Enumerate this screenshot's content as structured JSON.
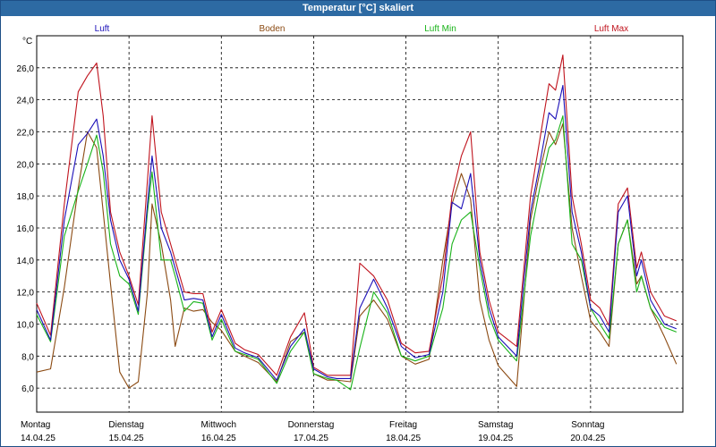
{
  "window": {
    "title": "Temperatur [°C] skaliert"
  },
  "colors": {
    "luft": "#1a0fb8",
    "boden": "#8b4a12",
    "luft_min": "#19b319",
    "luft_max": "#c0141e",
    "titlebar": "#2d6aa3"
  },
  "chart_data": {
    "type": "line",
    "title": "Temperatur [°C] skaliert",
    "ylabel": "°C",
    "ylim": [
      4.5,
      28
    ],
    "grid": true,
    "legend_position": "top",
    "xlim": [
      0,
      7
    ],
    "y_ticks": [
      "6,0",
      "8,0",
      "10,0",
      "12,0",
      "14,0",
      "16,0",
      "18,0",
      "20,0",
      "22,0",
      "24,0",
      "26,0"
    ],
    "y_tick_values": [
      6,
      8,
      10,
      12,
      14,
      16,
      18,
      20,
      22,
      24,
      26
    ],
    "x_ticks": [
      {
        "day": "Montag",
        "date": "14.04.25"
      },
      {
        "day": "Dienstag",
        "date": "15.04.25"
      },
      {
        "day": "Mittwoch",
        "date": "16.04.25"
      },
      {
        "day": "Donnerstag",
        "date": "17.04.25"
      },
      {
        "day": "Freitag",
        "date": "18.04.25"
      },
      {
        "day": "Samstag",
        "date": "19.04.25"
      },
      {
        "day": "Sonntag",
        "date": "20.04.25"
      }
    ],
    "x": [
      0,
      0.15,
      0.3,
      0.45,
      0.55,
      0.65,
      0.72,
      0.8,
      0.9,
      1.0,
      1.1,
      1.2,
      1.25,
      1.35,
      1.45,
      1.5,
      1.6,
      1.7,
      1.8,
      1.9,
      2.0,
      2.15,
      2.25,
      2.4,
      2.6,
      2.75,
      2.9,
      3.0,
      3.15,
      3.25,
      3.4,
      3.5,
      3.65,
      3.8,
      3.95,
      4.1,
      4.25,
      4.4,
      4.5,
      4.6,
      4.7,
      4.8,
      4.9,
      5.0,
      5.2,
      5.35,
      5.45,
      5.55,
      5.62,
      5.7,
      5.8,
      5.9,
      6.0,
      6.1,
      6.2,
      6.3,
      6.4,
      6.5,
      6.55,
      6.65,
      6.8,
      6.93
    ],
    "series": [
      {
        "name": "Luft",
        "color": "#1a0fb8",
        "values": [
          10.9,
          9.0,
          16.5,
          21.2,
          21.9,
          22.8,
          20.5,
          16.5,
          14.0,
          12.8,
          10.8,
          17.5,
          20.5,
          16.0,
          14.5,
          13.5,
          11.5,
          11.6,
          11.5,
          9.2,
          10.6,
          8.5,
          8.2,
          7.9,
          6.5,
          8.6,
          9.7,
          7.2,
          6.7,
          6.6,
          6.6,
          11.0,
          12.8,
          11.0,
          8.6,
          7.9,
          8.1,
          12.0,
          17.6,
          17.2,
          19.4,
          14.0,
          11.0,
          9.2,
          8.0,
          17.0,
          20.0,
          23.2,
          22.8,
          24.9,
          17.0,
          14.5,
          11.0,
          10.5,
          9.5,
          17.0,
          18.0,
          13.0,
          14.0,
          11.5,
          10.0,
          9.7
        ]
      },
      {
        "name": "Boden",
        "color": "#8b4a12",
        "values": [
          7.0,
          7.2,
          12.3,
          18.5,
          22.0,
          21.0,
          17.0,
          12.5,
          7.0,
          6.0,
          6.4,
          12.0,
          17.5,
          15.0,
          11.5,
          8.6,
          11.0,
          10.8,
          10.9,
          10.1,
          9.6,
          8.3,
          8.0,
          7.6,
          6.4,
          8.9,
          9.5,
          6.9,
          6.5,
          6.5,
          6.4,
          10.5,
          11.5,
          10.3,
          8.0,
          7.5,
          7.8,
          14.0,
          17.5,
          19.4,
          17.8,
          11.5,
          9.0,
          7.4,
          6.1,
          16.5,
          19.5,
          22.0,
          21.2,
          22.5,
          16.0,
          13.0,
          10.2,
          9.5,
          8.6,
          15.0,
          16.5,
          12.5,
          13.0,
          11.0,
          9.2,
          7.5
        ]
      },
      {
        "name": "Luft Min",
        "color": "#19b319",
        "values": [
          10.6,
          8.9,
          15.5,
          18.3,
          20.0,
          21.8,
          19.5,
          15.0,
          13.0,
          12.5,
          10.6,
          17.0,
          19.5,
          14.0,
          14.0,
          13.0,
          10.8,
          11.4,
          11.3,
          9.0,
          10.3,
          8.3,
          8.1,
          7.8,
          6.3,
          8.3,
          9.5,
          6.9,
          6.6,
          6.5,
          5.9,
          8.5,
          12.0,
          10.7,
          8.0,
          7.7,
          8.0,
          11.0,
          15.0,
          16.5,
          17.0,
          13.5,
          10.5,
          9.0,
          7.7,
          15.5,
          18.5,
          21.0,
          21.5,
          23.0,
          15.0,
          14.0,
          11.0,
          10.0,
          9.1,
          15.0,
          16.5,
          12.0,
          13.0,
          11.0,
          9.8,
          9.5
        ]
      },
      {
        "name": "Luft Max",
        "color": "#c0141e",
        "values": [
          11.3,
          9.3,
          17.5,
          24.5,
          25.5,
          26.3,
          23.0,
          17.0,
          14.5,
          13.0,
          11.2,
          19.0,
          23.0,
          17.0,
          15.0,
          14.0,
          12.0,
          11.9,
          11.9,
          9.5,
          10.9,
          8.8,
          8.4,
          8.1,
          6.8,
          9.2,
          10.7,
          7.3,
          6.8,
          6.8,
          6.8,
          13.8,
          13.0,
          11.5,
          8.8,
          8.2,
          8.3,
          13.0,
          18.0,
          20.5,
          22.0,
          14.5,
          11.5,
          9.5,
          8.6,
          18.0,
          21.5,
          25.0,
          24.6,
          26.8,
          18.0,
          15.0,
          11.5,
          11.0,
          9.9,
          17.5,
          18.5,
          13.5,
          14.5,
          12.0,
          10.5,
          10.2
        ]
      }
    ]
  }
}
